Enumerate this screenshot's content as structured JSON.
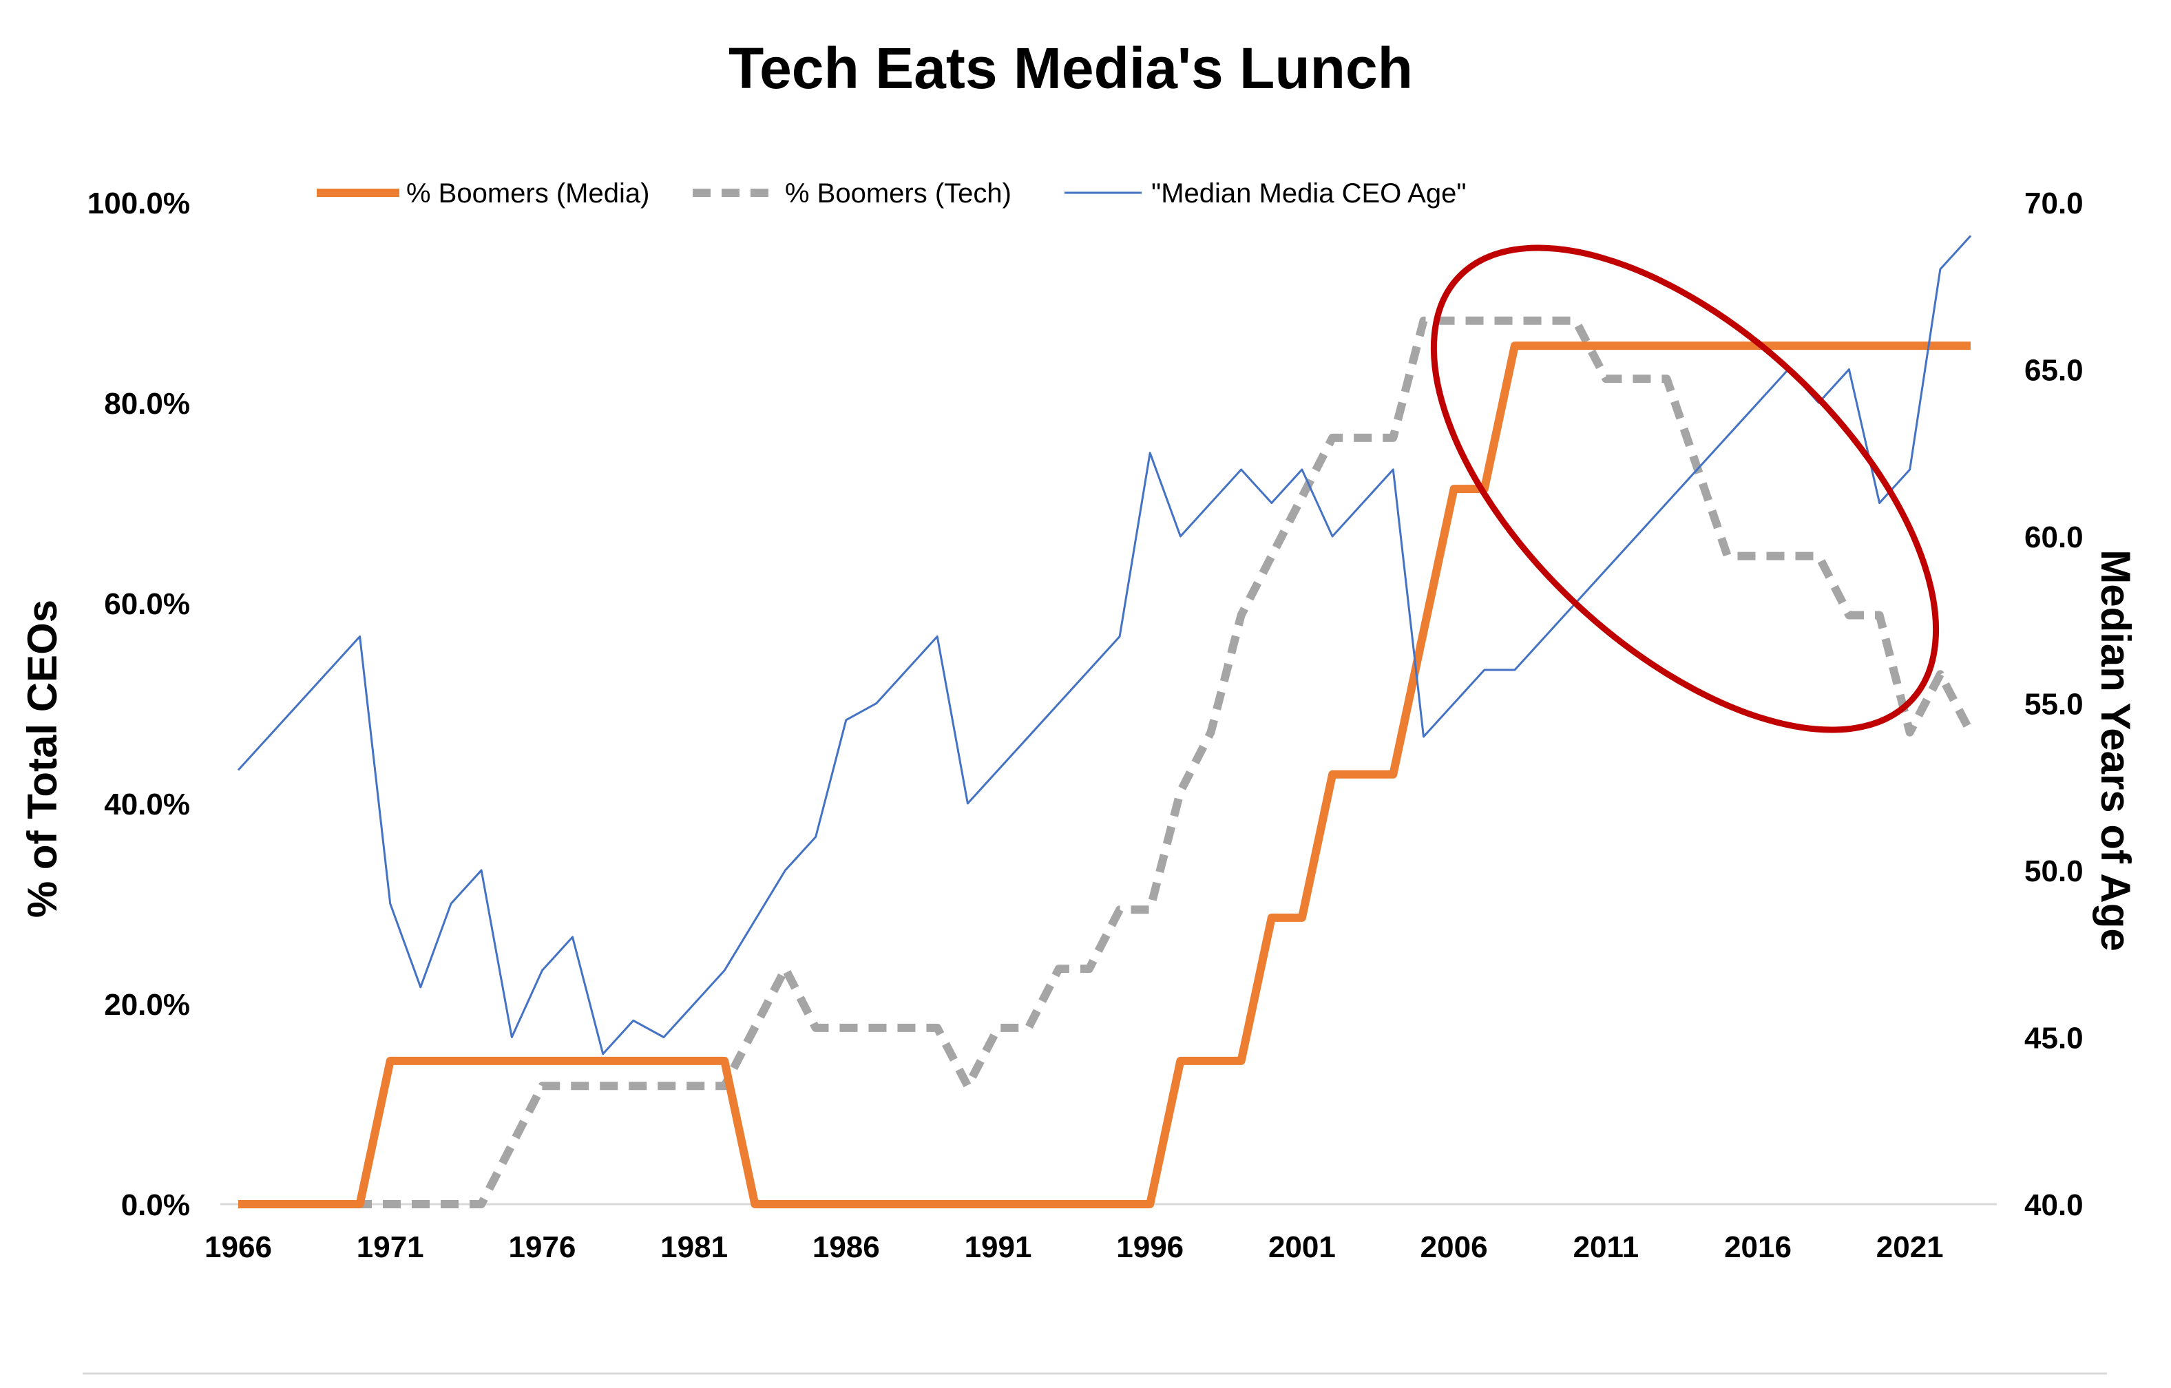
{
  "chart_data": {
    "type": "line",
    "title": "Tech Eats Media's Lunch",
    "y_left_label": "% of Total CEOs",
    "y_right_label": "Median Years of Age",
    "x_ticks": [
      "1966",
      "1971",
      "1976",
      "1981",
      "1986",
      "1991",
      "1996",
      "2001",
      "2006",
      "2011",
      "2016",
      "2021"
    ],
    "y_left_ticks": [
      "0.0%",
      "20.0%",
      "40.0%",
      "60.0%",
      "80.0%",
      "100.0%"
    ],
    "y_right_ticks": [
      "40.0",
      "45.0",
      "50.0",
      "55.0",
      "60.0",
      "65.0",
      "70.0"
    ],
    "y_left_range": [
      0,
      100
    ],
    "y_right_range": [
      40,
      70
    ],
    "x_range": [
      1966,
      2023
    ],
    "grid": false,
    "legend_position": "top",
    "annotation": "red ellipse highlighting 2005-2021",
    "series": [
      {
        "name": "% Boomers (Media)",
        "axis": "left",
        "color": "#ed7d31",
        "style": "solid-thick",
        "step": true,
        "points": [
          [
            1966,
            0
          ],
          [
            1970,
            0
          ],
          [
            1971,
            14.3
          ],
          [
            1982,
            14.3
          ],
          [
            1983,
            0
          ],
          [
            1996,
            0
          ],
          [
            1997,
            14.3
          ],
          [
            1999,
            14.3
          ],
          [
            2000,
            28.6
          ],
          [
            2001,
            28.6
          ],
          [
            2002,
            42.9
          ],
          [
            2004,
            42.9
          ],
          [
            2006,
            71.4
          ],
          [
            2007,
            71.4
          ],
          [
            2008,
            85.7
          ],
          [
            2023,
            85.7
          ]
        ]
      },
      {
        "name": "% Boomers (Tech)",
        "axis": "left",
        "color": "#a5a5a5",
        "style": "dashed",
        "step": true,
        "points": [
          [
            1966,
            0
          ],
          [
            1974,
            0
          ],
          [
            1976,
            11.8
          ],
          [
            1982,
            11.8
          ],
          [
            1984,
            23.5
          ],
          [
            1985,
            17.6
          ],
          [
            1989,
            17.6
          ],
          [
            1990,
            11.8
          ],
          [
            1991,
            17.6
          ],
          [
            1992,
            17.6
          ],
          [
            1993,
            23.5
          ],
          [
            1994,
            23.5
          ],
          [
            1995,
            29.4
          ],
          [
            1996,
            29.4
          ],
          [
            1997,
            41.2
          ],
          [
            1998,
            47.1
          ],
          [
            1999,
            58.8
          ],
          [
            2000,
            64.7
          ],
          [
            2001,
            70.6
          ],
          [
            2002,
            76.5
          ],
          [
            2004,
            76.5
          ],
          [
            2005,
            88.2
          ],
          [
            2010,
            88.2
          ],
          [
            2011,
            82.4
          ],
          [
            2013,
            82.4
          ],
          [
            2015,
            64.7
          ],
          [
            2017,
            64.7
          ],
          [
            2018,
            64.7
          ],
          [
            2019,
            58.8
          ],
          [
            2020,
            58.8
          ],
          [
            2021,
            47.1
          ],
          [
            2022,
            52.9
          ],
          [
            2023,
            47.1
          ]
        ]
      },
      {
        "name": "\"Median Media CEO Age\"",
        "axis": "right",
        "color": "#4472c4",
        "style": "solid-thin",
        "step": false,
        "points": [
          [
            1966,
            53
          ],
          [
            1970,
            57
          ],
          [
            1971,
            49
          ],
          [
            1972,
            46.5
          ],
          [
            1973,
            49
          ],
          [
            1974,
            50
          ],
          [
            1975,
            45
          ],
          [
            1976,
            47
          ],
          [
            1977,
            48
          ],
          [
            1978,
            44.5
          ],
          [
            1979,
            45.5
          ],
          [
            1980,
            45
          ],
          [
            1982,
            47
          ],
          [
            1984,
            50
          ],
          [
            1985,
            51
          ],
          [
            1986,
            54.5
          ],
          [
            1987,
            55
          ],
          [
            1989,
            57
          ],
          [
            1990,
            52
          ],
          [
            1995,
            57
          ],
          [
            1996,
            62.5
          ],
          [
            1997,
            60
          ],
          [
            1999,
            62
          ],
          [
            2000,
            61
          ],
          [
            2001,
            62
          ],
          [
            2002,
            60
          ],
          [
            2004,
            62
          ],
          [
            2005,
            54
          ],
          [
            2007,
            56
          ],
          [
            2008,
            56
          ],
          [
            2017,
            65
          ],
          [
            2018,
            64
          ],
          [
            2019,
            65
          ],
          [
            2020,
            61
          ],
          [
            2021,
            62
          ],
          [
            2022,
            68
          ],
          [
            2023,
            69
          ]
        ]
      }
    ]
  }
}
